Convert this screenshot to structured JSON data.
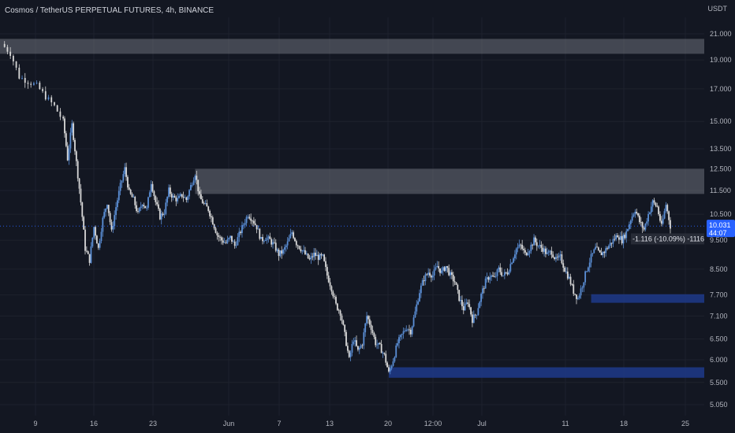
{
  "header": {
    "title": "Cosmos / TetherUS PERPETUAL FUTURES, 4h, BINANCE",
    "unit": "USDT"
  },
  "price_label": {
    "price": "10.031",
    "countdown": "44:07"
  },
  "measure_label": "-1.116 (-10.09%) -1116",
  "colors": {
    "background": "#131722",
    "grid": "#1e222d",
    "candle_up": "#5b8fd6",
    "candle_down": "#d8d8d8",
    "supply_zone": "#6b6f7a",
    "demand_zone": "#1e3a8a",
    "price_tag": "#2962ff"
  },
  "chart_data": {
    "type": "candlestick",
    "title": "Cosmos / TetherUS PERPETUAL FUTURES, 4h, BINANCE",
    "y_axis": {
      "scale": "log",
      "unit": "USDT",
      "ticks": [
        21.0,
        19.0,
        17.0,
        15.0,
        13.5,
        12.5,
        11.5,
        10.5,
        9.5,
        8.5,
        7.7,
        7.1,
        6.5,
        6.0,
        5.5,
        5.05
      ],
      "tick_labels": [
        "21.000",
        "19.000",
        "17.000",
        "15.000",
        "13.500",
        "12.500",
        "11.500",
        "10.500",
        "9.500",
        "8.500",
        "7.700",
        "7.100",
        "6.500",
        "6.000",
        "5.500",
        "5.050"
      ],
      "range": [
        4.95,
        23.5
      ]
    },
    "x_axis": {
      "tick_labels": [
        "9",
        "16",
        "23",
        "Jun",
        "7",
        "13",
        "20",
        "12:00",
        "Jul",
        "11",
        "18",
        "25"
      ]
    },
    "price_path": [
      [
        0,
        20.2
      ],
      [
        2,
        19.5
      ],
      [
        4,
        17.8
      ],
      [
        6,
        17.5
      ],
      [
        8,
        17.2
      ],
      [
        10,
        16.5
      ],
      [
        12,
        15.9
      ],
      [
        14,
        15.0
      ],
      [
        15,
        13.0
      ],
      [
        16,
        14.8
      ],
      [
        17,
        12.8
      ],
      [
        18,
        11.0
      ],
      [
        19,
        9.2
      ],
      [
        20,
        8.8
      ],
      [
        21,
        10.0
      ],
      [
        22,
        9.2
      ],
      [
        23,
        10.3
      ],
      [
        24,
        11.0
      ],
      [
        25,
        9.8
      ],
      [
        26,
        10.8
      ],
      [
        27,
        11.7
      ],
      [
        28,
        12.5
      ],
      [
        29,
        11.4
      ],
      [
        30,
        11.1
      ],
      [
        31,
        10.5
      ],
      [
        32,
        11.0
      ],
      [
        33,
        10.7
      ],
      [
        34,
        11.9
      ],
      [
        35,
        11.0
      ],
      [
        36,
        10.4
      ],
      [
        37,
        10.6
      ],
      [
        38,
        11.5
      ],
      [
        39,
        11.2
      ],
      [
        40,
        11.1
      ],
      [
        41,
        11.3
      ],
      [
        42,
        11.1
      ],
      [
        43,
        11.7
      ],
      [
        44,
        12.3
      ],
      [
        45,
        11.2
      ],
      [
        46,
        10.9
      ],
      [
        47,
        10.7
      ],
      [
        48,
        10.2
      ],
      [
        49,
        9.7
      ],
      [
        50,
        9.5
      ],
      [
        51,
        9.4
      ],
      [
        52,
        9.6
      ],
      [
        53,
        9.3
      ],
      [
        54,
        9.7
      ],
      [
        55,
        10.1
      ],
      [
        56,
        10.5
      ],
      [
        57,
        10.3
      ],
      [
        58,
        10.0
      ],
      [
        59,
        9.5
      ],
      [
        60,
        9.6
      ],
      [
        61,
        9.5
      ],
      [
        62,
        9.3
      ],
      [
        63,
        9.0
      ],
      [
        64,
        9.1
      ],
      [
        65,
        9.4
      ],
      [
        66,
        9.8
      ],
      [
        67,
        9.4
      ],
      [
        68,
        9.2
      ],
      [
        69,
        9.0
      ],
      [
        70,
        8.8
      ],
      [
        71,
        9.0
      ],
      [
        72,
        8.9
      ],
      [
        73,
        8.9
      ],
      [
        74,
        8.3
      ],
      [
        75,
        7.9
      ],
      [
        76,
        7.4
      ],
      [
        77,
        7.2
      ],
      [
        78,
        6.6
      ],
      [
        79,
        6.0
      ],
      [
        80,
        6.5
      ],
      [
        81,
        6.2
      ],
      [
        82,
        6.4
      ],
      [
        83,
        7.1
      ],
      [
        84,
        6.8
      ],
      [
        85,
        6.4
      ],
      [
        86,
        6.3
      ],
      [
        87,
        6.1
      ],
      [
        88,
        5.7
      ],
      [
        89,
        6.0
      ],
      [
        90,
        6.4
      ],
      [
        91,
        6.6
      ],
      [
        92,
        6.8
      ],
      [
        93,
        6.7
      ],
      [
        94,
        7.2
      ],
      [
        95,
        7.8
      ],
      [
        96,
        8.2
      ],
      [
        97,
        8.4
      ],
      [
        98,
        8.3
      ],
      [
        99,
        8.6
      ],
      [
        100,
        8.4
      ],
      [
        101,
        8.6
      ],
      [
        102,
        8.3
      ],
      [
        103,
        8.1
      ],
      [
        104,
        7.6
      ],
      [
        105,
        7.3
      ],
      [
        106,
        7.5
      ],
      [
        107,
        7.0
      ],
      [
        108,
        7.2
      ],
      [
        109,
        7.7
      ],
      [
        110,
        8.1
      ],
      [
        111,
        8.3
      ],
      [
        112,
        8.2
      ],
      [
        113,
        8.5
      ],
      [
        114,
        8.3
      ],
      [
        115,
        8.4
      ],
      [
        116,
        8.8
      ],
      [
        117,
        9.2
      ],
      [
        118,
        9.3
      ],
      [
        119,
        9.0
      ],
      [
        120,
        9.2
      ],
      [
        121,
        9.5
      ],
      [
        122,
        9.3
      ],
      [
        123,
        9.2
      ],
      [
        124,
        9.0
      ],
      [
        125,
        9.1
      ],
      [
        126,
        8.8
      ],
      [
        127,
        8.9
      ],
      [
        128,
        8.5
      ],
      [
        129,
        8.2
      ],
      [
        130,
        7.8
      ],
      [
        131,
        7.6
      ],
      [
        132,
        8.0
      ],
      [
        133,
        8.5
      ],
      [
        134,
        8.9
      ],
      [
        135,
        9.2
      ],
      [
        136,
        9.0
      ],
      [
        137,
        9.1
      ],
      [
        138,
        9.3
      ],
      [
        139,
        9.5
      ],
      [
        140,
        9.7
      ],
      [
        141,
        9.5
      ],
      [
        142,
        9.8
      ],
      [
        143,
        10.3
      ],
      [
        144,
        10.7
      ],
      [
        145,
        10.2
      ],
      [
        146,
        9.9
      ],
      [
        147,
        10.5
      ],
      [
        148,
        11.0
      ],
      [
        149,
        10.8
      ],
      [
        150,
        10.0
      ],
      [
        151,
        10.9
      ],
      [
        152,
        10.03
      ]
    ],
    "zones": [
      {
        "kind": "supply",
        "from": 0,
        "to": 160,
        "low": 19.45,
        "high": 20.6
      },
      {
        "kind": "supply",
        "from": 44,
        "to": 160,
        "low": 11.35,
        "high": 12.5
      },
      {
        "kind": "demand",
        "from": 134,
        "to": 160,
        "low": 7.47,
        "high": 7.72
      },
      {
        "kind": "demand",
        "from": 88,
        "to": 160,
        "low": 5.6,
        "high": 5.83
      }
    ],
    "last_price": 10.031,
    "measurement": {
      "change": -1.116,
      "percent": -10.09
    }
  }
}
